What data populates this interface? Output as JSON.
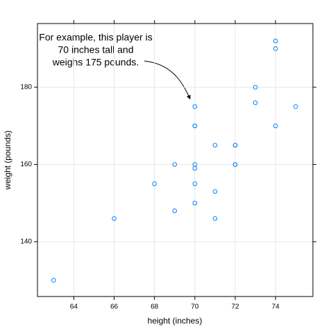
{
  "chart_data": {
    "type": "scatter",
    "x_label": "height (inches)",
    "y_label": "weight (pounds)",
    "annotation": [
      "For example, this player is",
      "70 inches tall and",
      "weighs 175 pounds."
    ],
    "x": [
      63,
      66,
      68,
      69,
      69,
      70,
      70,
      70,
      70,
      70,
      70,
      70,
      71,
      71,
      71,
      72,
      72,
      72,
      72,
      73,
      73,
      74,
      74,
      74,
      75
    ],
    "series": [
      {
        "name": "weight",
        "color": "#0080ff",
        "values": [
          130,
          146,
          155,
          160,
          148,
          175,
          170,
          170,
          160,
          159,
          155,
          150,
          165,
          153,
          146,
          165,
          165,
          160,
          160,
          180,
          176,
          192,
          190,
          170,
          175
        ]
      }
    ],
    "xlim": [
      62.2,
      75.85
    ],
    "ylim": [
      125.8,
      196.5
    ],
    "xticks": [
      64,
      66,
      68,
      70,
      72,
      74
    ],
    "yticks": [
      140,
      160,
      180
    ],
    "grid": true
  }
}
